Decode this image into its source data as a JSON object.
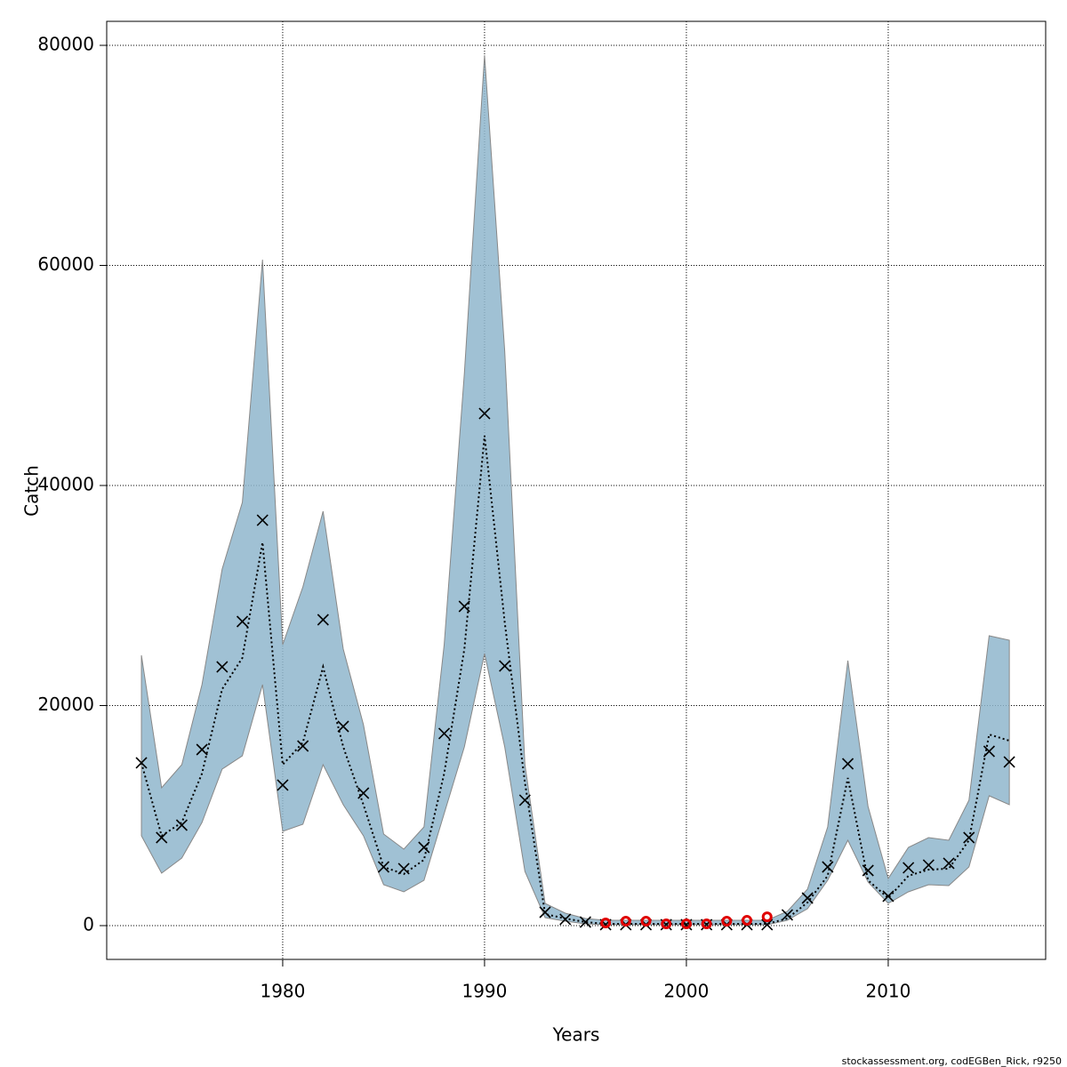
{
  "chart_data": {
    "type": "band-line",
    "x_label": "Years",
    "y_label": "Catch",
    "footer": "stockassessment.org, codEGBen_Rick, r9250",
    "xlim": [
      1971.28,
      2017.8
    ],
    "ylim": [
      -3071,
      82182
    ],
    "xticks": [
      1980,
      1990,
      2000,
      2010
    ],
    "yticks": [
      0,
      20000,
      40000,
      60000,
      80000
    ],
    "grid": true,
    "band_color": "#8fb6cc",
    "line_color": "#000000",
    "marker_color": "#000000",
    "point_color": "#e00000",
    "x": [
      1973,
      1974,
      1975,
      1976,
      1977,
      1978,
      1979,
      1980,
      1981,
      1982,
      1983,
      1984,
      1985,
      1986,
      1987,
      1988,
      1989,
      1990,
      1991,
      1992,
      1993,
      1994,
      1995,
      1996,
      1997,
      1998,
      1999,
      2000,
      2001,
      2002,
      2003,
      2004,
      2005,
      2006,
      2007,
      2008,
      2009,
      2010,
      2011,
      2012,
      2013,
      2014,
      2015,
      2016
    ],
    "upper": [
      24566,
      12525,
      14626,
      21899,
      32404,
      38465,
      60525,
      25535,
      30788,
      37657,
      25131,
      18263,
      8323,
      6949,
      8970,
      25535,
      50182,
      79111,
      52202,
      14626,
      2020,
      1131,
      646,
      485,
      485,
      485,
      485,
      485,
      485,
      485,
      485,
      485,
      1293,
      3313,
      8970,
      24081,
      10828,
      4283,
      7111,
      8000,
      7758,
      11394,
      26343,
      25939
    ],
    "lower": [
      8162,
      4768,
      6141,
      9374,
      14222,
      15434,
      21899,
      8566,
      9212,
      14626,
      10990,
      8162,
      3717,
      3071,
      4121,
      10182,
      16242,
      24727,
      16242,
      4929,
      727,
      404,
      162,
      81,
      81,
      81,
      81,
      81,
      81,
      81,
      81,
      81,
      485,
      1535,
      4121,
      7758,
      3960,
      2020,
      3071,
      3717,
      3636,
      5333,
      11798,
      10990
    ],
    "estimate": [
      14788,
      8162,
      9374,
      13818,
      21495,
      24323,
      34828,
      14626,
      16646,
      23515,
      16242,
      10990,
      5333,
      4687,
      5980,
      13818,
      25131,
      44525,
      27556,
      13010,
      1050,
      646,
      323,
      160,
      160,
      160,
      160,
      160,
      160,
      160,
      160,
      160,
      646,
      2101,
      4525,
      13414,
      4121,
      2505,
      4525,
      5091,
      5172,
      7758,
      17374,
      16808
    ],
    "observed": [
      14788,
      8000,
      9131,
      16000,
      23515,
      27636,
      36848,
      12768,
      16323,
      27798,
      18101,
      12040,
      5333,
      5172,
      7111,
      17455,
      29010,
      46545,
      23596,
      11394,
      1212,
      566,
      323,
      81,
      81,
      81,
      81,
      81,
      81,
      81,
      81,
      81,
      970,
      2505,
      5333,
      14707,
      5010,
      2667,
      5253,
      5495,
      5657,
      8000,
      15838,
      14869
    ],
    "red_points": {
      "x": [
        1996,
        1997,
        1998,
        1999,
        2000,
        2001,
        2002,
        2003,
        2004
      ],
      "values": [
        240,
        400,
        400,
        160,
        160,
        160,
        400,
        480,
        800
      ]
    }
  }
}
